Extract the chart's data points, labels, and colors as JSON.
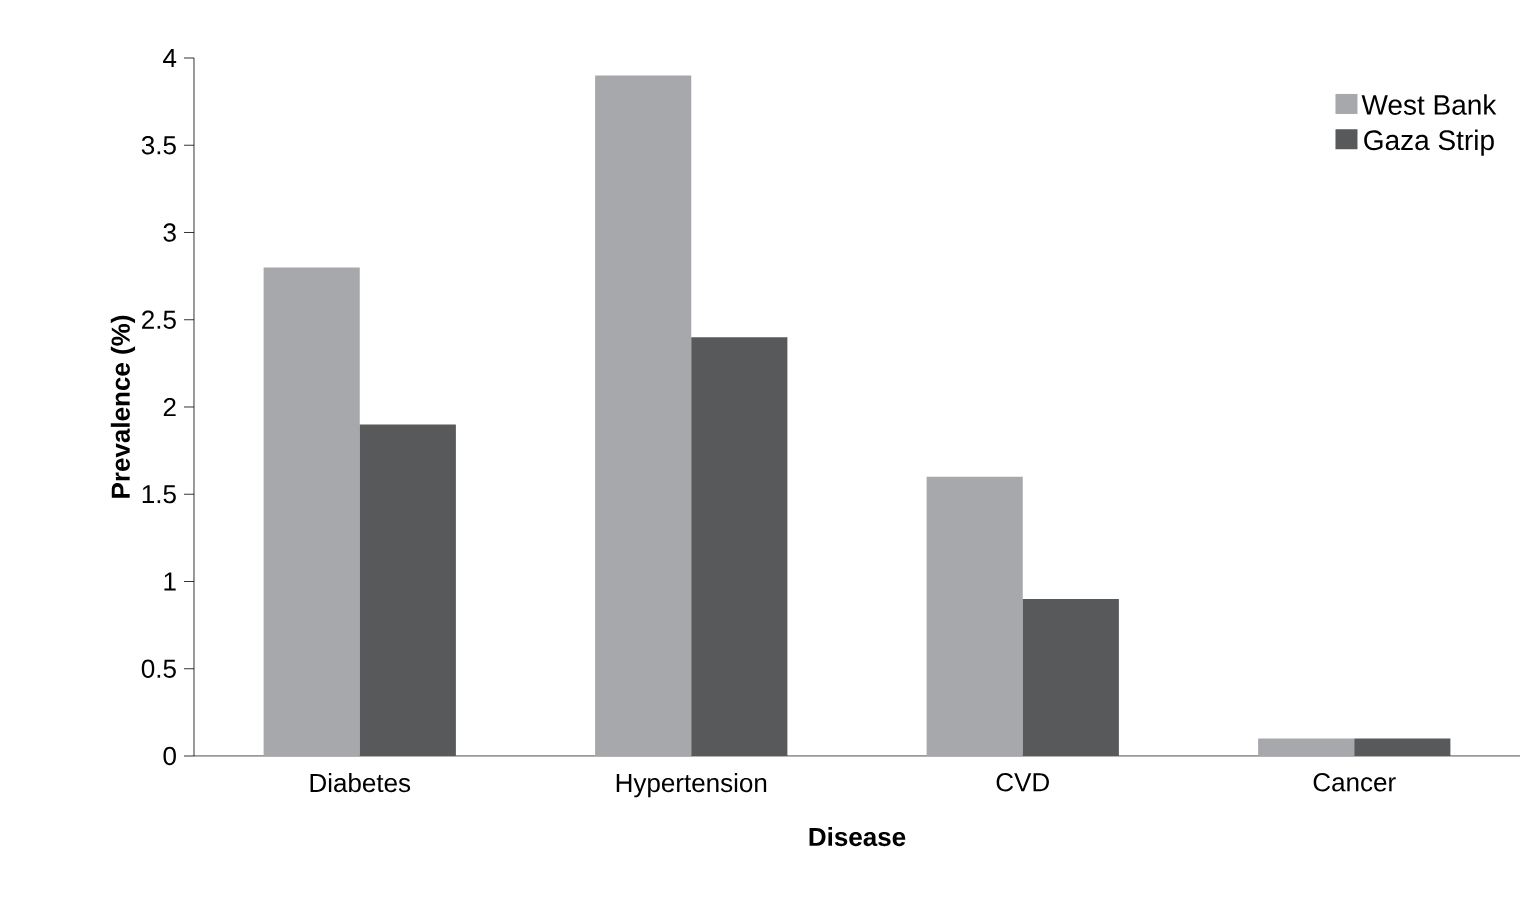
{
  "chart_data": {
    "type": "bar",
    "xlabel": "Disease",
    "ylabel": "Prevalence (%)",
    "categories": [
      "Diabetes",
      "Hypertension",
      "CVD",
      "Cancer"
    ],
    "series": [
      {
        "name": "West Bank",
        "color": "#a7a8ab",
        "values": [
          2.8,
          3.9,
          1.6,
          0.1
        ]
      },
      {
        "name": "Gaza Strip",
        "color": "#58595b",
        "values": [
          1.9,
          2.4,
          0.9,
          0.1
        ]
      }
    ],
    "ylim": [
      0,
      4
    ],
    "yticks": [
      0,
      0.5,
      1,
      1.5,
      2,
      2.5,
      3,
      3.5,
      4
    ],
    "grid": false,
    "legend": "top right"
  }
}
